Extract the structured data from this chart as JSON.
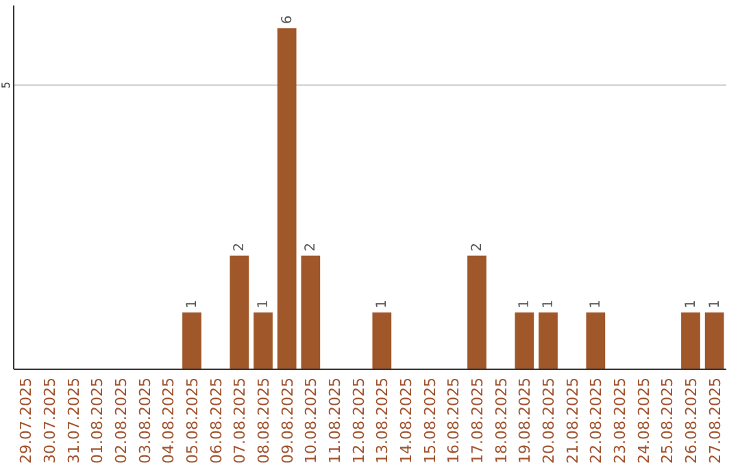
{
  "chart_data": {
    "type": "bar",
    "categories": [
      "29.07.2025",
      "30.07.2025",
      "31.07.2025",
      "01.08.2025",
      "02.08.2025",
      "03.08.2025",
      "04.08.2025",
      "05.08.2025",
      "06.08.2025",
      "07.08.2025",
      "08.08.2025",
      "09.08.2025",
      "10.08.2025",
      "11.08.2025",
      "12.08.2025",
      "13.08.2025",
      "14.08.2025",
      "15.08.2025",
      "16.08.2025",
      "17.08.2025",
      "18.08.2025",
      "19.08.2025",
      "20.08.2025",
      "21.08.2025",
      "22.08.2025",
      "23.08.2025",
      "24.08.2025",
      "25.08.2025",
      "26.08.2025",
      "27.08.2025"
    ],
    "values": [
      0,
      0,
      0,
      0,
      0,
      0,
      0,
      1,
      0,
      2,
      1,
      6,
      2,
      0,
      0,
      1,
      0,
      0,
      0,
      2,
      0,
      1,
      1,
      0,
      1,
      0,
      0,
      0,
      1,
      1
    ],
    "value_labels": [
      null,
      null,
      null,
      null,
      null,
      null,
      null,
      "1",
      null,
      "2",
      "1",
      "6",
      "2",
      null,
      null,
      "1",
      null,
      null,
      null,
      "2",
      null,
      "1",
      "1",
      null,
      "1",
      null,
      null,
      null,
      "1",
      "1"
    ],
    "color": "#a0572a",
    "ylim": [
      0,
      6.4
    ],
    "yticks": [
      5
    ],
    "grid": "y"
  }
}
